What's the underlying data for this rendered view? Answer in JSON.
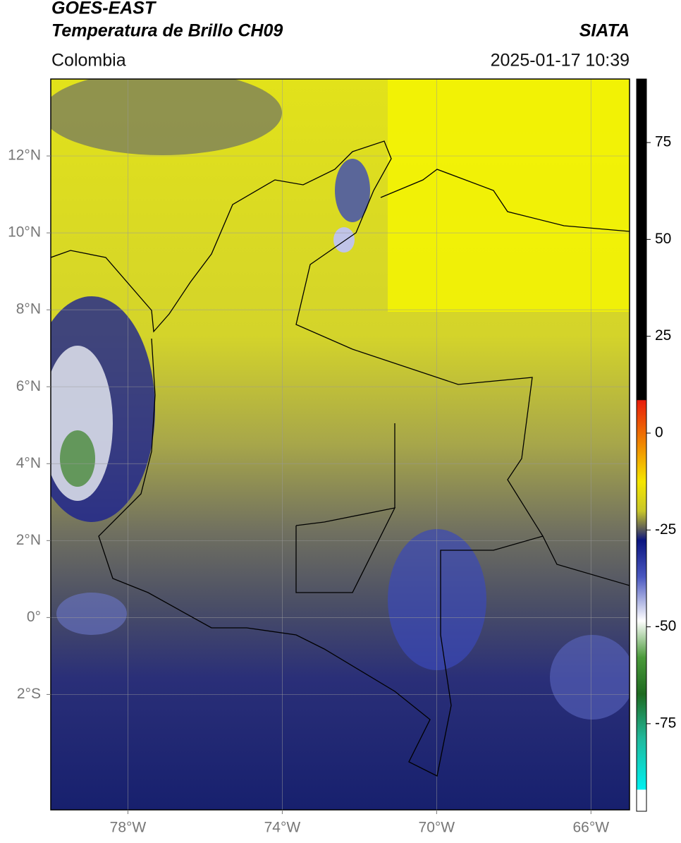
{
  "header": {
    "title": "GOES-EAST",
    "subtitle": "Temperatura de Brillo CH09",
    "agency": "SIATA",
    "region": "Colombia",
    "datetime": "2025-01-17 10:39"
  },
  "map": {
    "lon_lim": [
      -80,
      -65
    ],
    "lat_lim": [
      -5,
      14
    ],
    "lat_ticks": [
      {
        "value": 12,
        "label": "12°N"
      },
      {
        "value": 10,
        "label": "10°N"
      },
      {
        "value": 8,
        "label": "8°N"
      },
      {
        "value": 6,
        "label": "6°N"
      },
      {
        "value": 4,
        "label": "4°N"
      },
      {
        "value": 2,
        "label": "2°N"
      },
      {
        "value": 0,
        "label": "0°"
      },
      {
        "value": -2,
        "label": "2°S"
      }
    ],
    "lon_ticks": [
      {
        "value": -78,
        "label": "78°W"
      },
      {
        "value": -74,
        "label": "74°W"
      },
      {
        "value": -70,
        "label": "70°W"
      },
      {
        "value": -66,
        "label": "66°W"
      }
    ]
  },
  "colorbar": {
    "lim": [
      -97.6,
      91.4
    ],
    "ticks": [
      75,
      50,
      25,
      0,
      -25,
      -50,
      -75
    ]
  }
}
